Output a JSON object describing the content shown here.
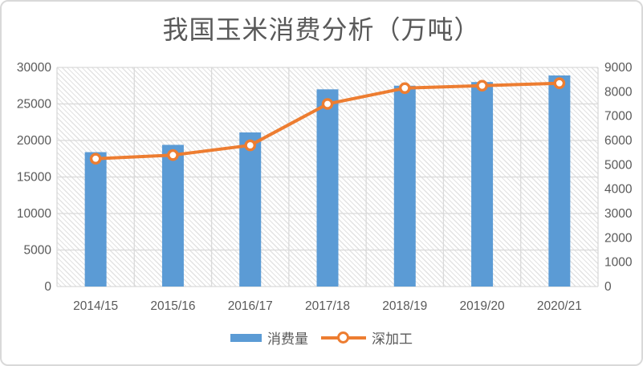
{
  "title": "我国玉米消费分析（万吨）",
  "colors": {
    "bar": "#5b9bd5",
    "line": "#ed7d31",
    "text": "#595959",
    "grid": "#d9d9d9",
    "marker_fill": "#ffffff"
  },
  "legend": [
    {
      "label": "消费量",
      "type": "bar",
      "color": "#5b9bd5"
    },
    {
      "label": "深加工",
      "type": "line",
      "color": "#ed7d31"
    }
  ],
  "chart_data": {
    "type": "bar",
    "subtype": "combo-bar-line-dual-axis",
    "title": "我国玉米消费分析（万吨）",
    "categories": [
      "2014/15",
      "2015/16",
      "2016/17",
      "2017/18",
      "2018/19",
      "2019/20",
      "2020/21"
    ],
    "series": [
      {
        "name": "消费量",
        "type": "bar",
        "axis": "left",
        "color": "#5b9bd5",
        "values": [
          18400,
          19400,
          21100,
          27000,
          27500,
          28000,
          28900
        ]
      },
      {
        "name": "深加工",
        "type": "line",
        "axis": "right",
        "color": "#ed7d31",
        "marker": "circle-white-fill-orange-ring",
        "values": [
          5250,
          5400,
          5800,
          7500,
          8150,
          8250,
          8350
        ]
      }
    ],
    "left_axis": {
      "min": 0,
      "max": 30000,
      "step": 5000,
      "tick_labels": [
        "0",
        "5000",
        "10000",
        "15000",
        "20000",
        "25000",
        "30000"
      ]
    },
    "right_axis": {
      "min": 0,
      "max": 9000,
      "step": 1000,
      "tick_labels": [
        "0",
        "1000",
        "2000",
        "3000",
        "4000",
        "5000",
        "6000",
        "7000",
        "8000",
        "9000"
      ]
    },
    "grid": "horizontal-and-vertical",
    "plot_background": "light-downward-diagonal-hatch",
    "legend_position": "bottom-center"
  }
}
